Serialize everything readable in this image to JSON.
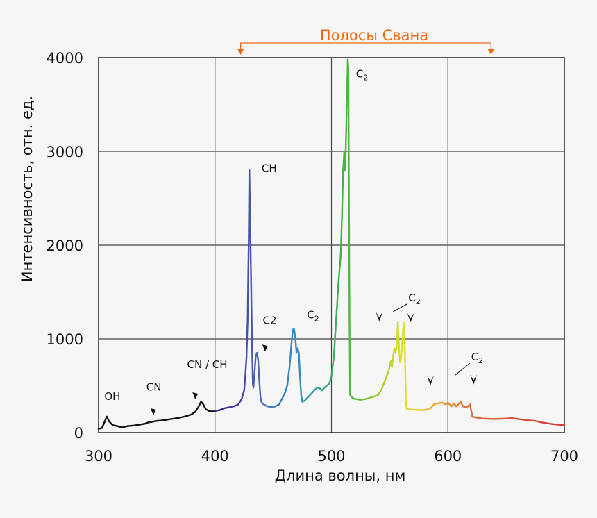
{
  "chart_data": {
    "type": "line",
    "title": "",
    "xlabel": "Длина волны, нм",
    "ylabel": "Интенсивность, отн. ед.",
    "xlim": [
      300,
      700
    ],
    "ylim": [
      0,
      4000
    ],
    "x_ticks": [
      300,
      400,
      500,
      600,
      700
    ],
    "x_tick_labels": [
      "300",
      "400",
      "500",
      "600",
      "700"
    ],
    "y_ticks": [
      0,
      1000,
      2000,
      3000,
      4000
    ],
    "y_tick_labels": [
      "0",
      "1000",
      "2000",
      "3000",
      "4000"
    ],
    "grid": true,
    "series": [
      {
        "name": "",
        "points": [
          [
            300,
            40
          ],
          [
            303,
            50
          ],
          [
            305,
            110
          ],
          [
            307,
            170
          ],
          [
            309,
            120
          ],
          [
            312,
            80
          ],
          [
            316,
            70
          ],
          [
            320,
            55
          ],
          [
            325,
            70
          ],
          [
            330,
            75
          ],
          [
            335,
            85
          ],
          [
            340,
            95
          ],
          [
            343,
            110
          ],
          [
            346,
            115
          ],
          [
            350,
            125
          ],
          [
            355,
            130
          ],
          [
            360,
            140
          ],
          [
            365,
            150
          ],
          [
            370,
            160
          ],
          [
            375,
            175
          ],
          [
            380,
            195
          ],
          [
            383,
            220
          ],
          [
            386,
            280
          ],
          [
            388,
            330
          ],
          [
            390,
            300
          ],
          [
            392,
            250
          ],
          [
            395,
            230
          ],
          [
            398,
            225
          ],
          [
            400,
            230
          ],
          [
            404,
            240
          ],
          [
            408,
            260
          ],
          [
            412,
            270
          ],
          [
            416,
            280
          ],
          [
            420,
            300
          ],
          [
            423,
            360
          ],
          [
            425,
            450
          ],
          [
            426,
            600
          ],
          [
            427,
            800
          ],
          [
            428,
            1200
          ],
          [
            429,
            2100
          ],
          [
            429.5,
            2800
          ],
          [
            430,
            2400
          ],
          [
            431,
            1600
          ],
          [
            432,
            800
          ],
          [
            432.5,
            520
          ],
          [
            433,
            480
          ],
          [
            434,
            650
          ],
          [
            435,
            820
          ],
          [
            436,
            850
          ],
          [
            437,
            780
          ],
          [
            438,
            560
          ],
          [
            439,
            380
          ],
          [
            440,
            320
          ],
          [
            442,
            300
          ],
          [
            445,
            280
          ],
          [
            450,
            270
          ],
          [
            455,
            300
          ],
          [
            460,
            420
          ],
          [
            462,
            500
          ],
          [
            464,
            700
          ],
          [
            466,
            1000
          ],
          [
            467,
            1100
          ],
          [
            468,
            1100
          ],
          [
            469,
            1000
          ],
          [
            470,
            850
          ],
          [
            471,
            900
          ],
          [
            472,
            850
          ],
          [
            473,
            600
          ],
          [
            474,
            400
          ],
          [
            475,
            330
          ],
          [
            477,
            340
          ],
          [
            480,
            380
          ],
          [
            483,
            420
          ],
          [
            486,
            460
          ],
          [
            488,
            480
          ],
          [
            490,
            470
          ],
          [
            492,
            450
          ],
          [
            494,
            480
          ],
          [
            496,
            500
          ],
          [
            498,
            520
          ],
          [
            500,
            600
          ],
          [
            502,
            800
          ],
          [
            504,
            1200
          ],
          [
            506,
            1600
          ],
          [
            508,
            1900
          ],
          [
            509,
            2300
          ],
          [
            510,
            2800
          ],
          [
            511,
            3000
          ],
          [
            511.5,
            2800
          ],
          [
            512,
            2900
          ],
          [
            513,
            3400
          ],
          [
            514,
            3980
          ],
          [
            514.5,
            3900
          ],
          [
            515,
            2500
          ],
          [
            515.5,
            1200
          ],
          [
            516,
            400
          ],
          [
            518,
            370
          ],
          [
            520,
            360
          ],
          [
            525,
            350
          ],
          [
            530,
            360
          ],
          [
            535,
            380
          ],
          [
            540,
            400
          ],
          [
            543,
            460
          ],
          [
            546,
            560
          ],
          [
            549,
            650
          ],
          [
            551,
            760
          ],
          [
            552,
            700
          ],
          [
            553,
            820
          ],
          [
            554,
            900
          ],
          [
            555,
            850
          ],
          [
            556,
            920
          ],
          [
            557,
            1180
          ],
          [
            558,
            900
          ],
          [
            559,
            750
          ],
          [
            560,
            820
          ],
          [
            561,
            1000
          ],
          [
            562,
            1170
          ],
          [
            563,
            900
          ],
          [
            564,
            300
          ],
          [
            565,
            250
          ],
          [
            570,
            245
          ],
          [
            575,
            240
          ],
          [
            580,
            240
          ],
          [
            585,
            260
          ],
          [
            588,
            300
          ],
          [
            590,
            310
          ],
          [
            595,
            320
          ],
          [
            598,
            300
          ],
          [
            600,
            320
          ],
          [
            603,
            280
          ],
          [
            605,
            310
          ],
          [
            607,
            280
          ],
          [
            609,
            300
          ],
          [
            611,
            330
          ],
          [
            613,
            280
          ],
          [
            615,
            270
          ],
          [
            617,
            280
          ],
          [
            619,
            300
          ],
          [
            621,
            170
          ],
          [
            625,
            160
          ],
          [
            630,
            150
          ],
          [
            640,
            145
          ],
          [
            650,
            150
          ],
          [
            655,
            155
          ],
          [
            660,
            145
          ],
          [
            670,
            130
          ],
          [
            675,
            125
          ],
          [
            680,
            110
          ],
          [
            685,
            100
          ],
          [
            690,
            90
          ],
          [
            695,
            85
          ],
          [
            700,
            80
          ]
        ]
      }
    ],
    "annotations": [
      {
        "text": "OH",
        "x": 305,
        "y": 350,
        "arrow": false
      },
      {
        "text": "CN",
        "x": 341,
        "y": 450,
        "arrow": true,
        "arrow_x": 347,
        "arrow_y": 200
      },
      {
        "text": "CN / CH",
        "x": 376,
        "y": 690,
        "arrow": true,
        "arrow_x": 383,
        "arrow_y": 370
      },
      {
        "text": "CH",
        "x": 440,
        "y": 2780,
        "arrow": false
      },
      {
        "text": "C2",
        "x": 441,
        "y": 1160,
        "arrow": true,
        "arrow_x": 443,
        "arrow_y": 880
      },
      {
        "text": "C",
        "sub": "2",
        "x": 479,
        "y": 1220,
        "arrow": false
      },
      {
        "text": "C",
        "sub": "2",
        "x": 521,
        "y": 3790,
        "arrow": false
      },
      {
        "text": "C",
        "sub": "2",
        "x": 566,
        "y": 1400,
        "arrow": false
      },
      {
        "text": "C",
        "sub": "2",
        "x": 620,
        "y": 770,
        "arrow": false
      }
    ],
    "markers": [
      {
        "x": 541,
        "y": 1200
      },
      {
        "x": 568,
        "y": 1190
      },
      {
        "x": 585,
        "y": 520
      },
      {
        "x": 622,
        "y": 530
      }
    ],
    "range_bracket": {
      "label": "Полосы Свана",
      "x_start": 422,
      "x_end": 637,
      "color": "#f06a12"
    }
  }
}
